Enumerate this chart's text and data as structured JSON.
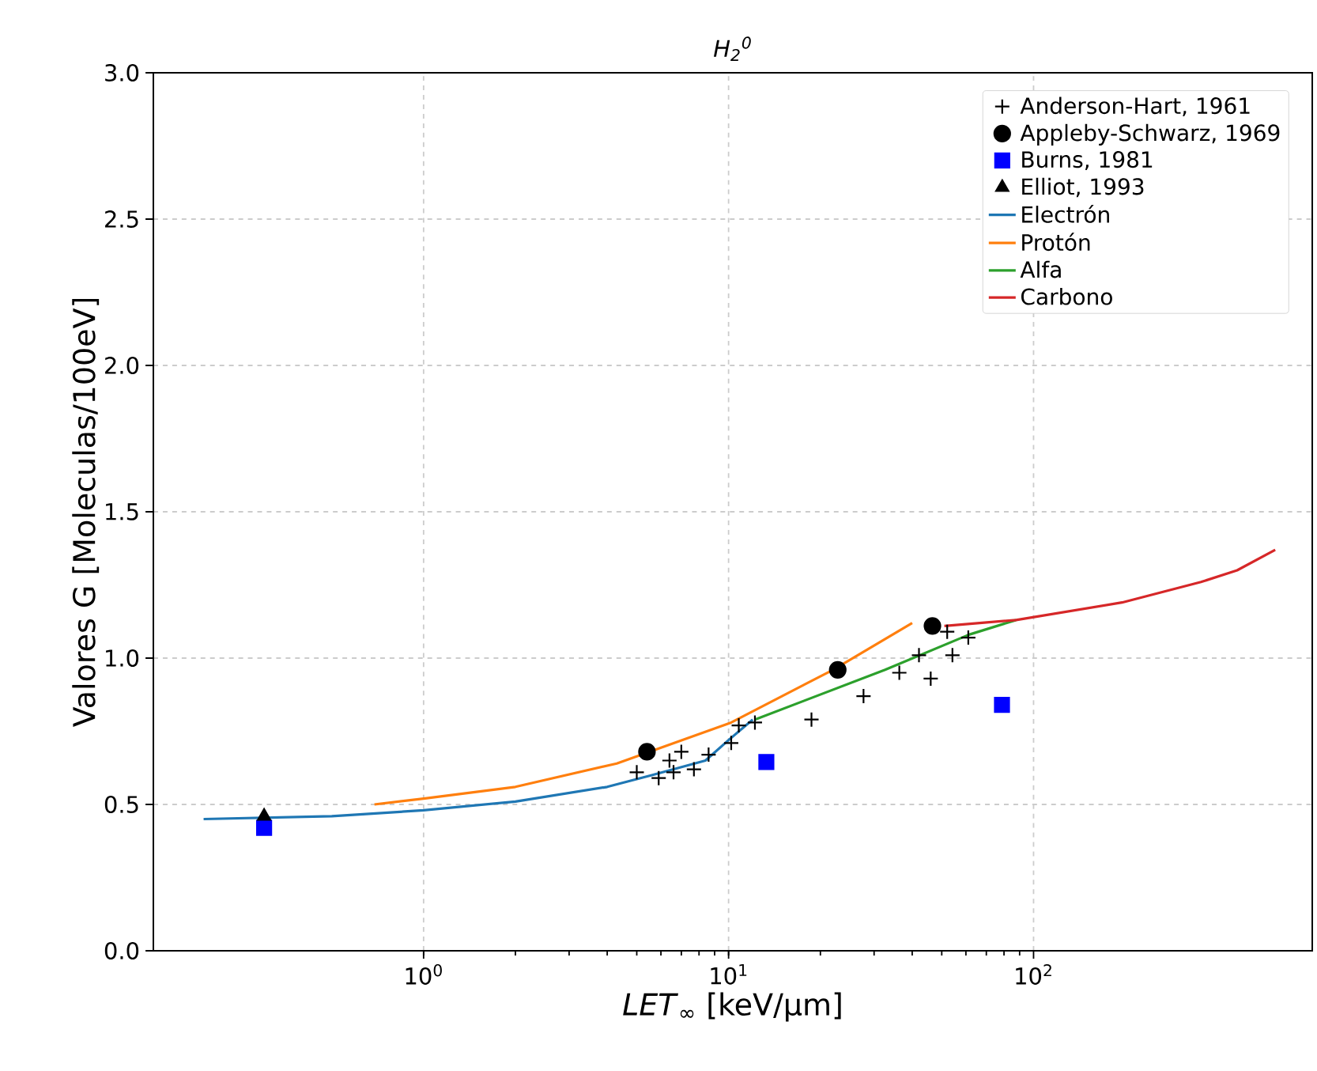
{
  "chart_data": {
    "type": "line",
    "title": "H$_{2}$$^{0}$",
    "xlabel": "*LET*$_{∞}$ [keV/µm]",
    "ylabel": "Valores G [Moleculas/100eV]",
    "log": "x",
    "grid": true,
    "legend": "top right",
    "xlim": [
      0.13,
      820
    ],
    "ylim": [
      0,
      3
    ],
    "xticks": [
      {
        "value": 1,
        "label": "10$^{0}$"
      },
      {
        "value": 10,
        "label": "10$^{1}$"
      },
      {
        "value": 100,
        "label": "10$^{2}$"
      }
    ],
    "yticks": [
      {
        "value": 0,
        "label": "0.0"
      },
      {
        "value": 0.5,
        "label": "0.5"
      },
      {
        "value": 1,
        "label": "1.0"
      },
      {
        "value": 1.5,
        "label": "1.5"
      },
      {
        "value": 2,
        "label": "2.0"
      },
      {
        "value": 2.5,
        "label": "2.5"
      },
      {
        "value": 3,
        "label": "3.0"
      }
    ],
    "series": [
      {
        "name": "Anderson-Hart, 1961",
        "type": "scatter",
        "marker": "cross",
        "color": "#000000",
        "x": [
          5.0,
          5.9,
          6.4,
          6.6,
          7.0,
          7.7,
          8.6,
          10.2,
          10.8,
          12.2,
          18.7,
          27.7,
          36.3,
          42.1,
          46.0,
          52.1,
          54.2,
          61.1
        ],
        "values": [
          0.61,
          0.59,
          0.65,
          0.61,
          0.68,
          0.62,
          0.67,
          0.71,
          0.77,
          0.78,
          0.79,
          0.87,
          0.95,
          1.01,
          0.93,
          1.09,
          1.01,
          1.07
        ]
      },
      {
        "name": "Appleby-Schwarz, 1969",
        "type": "scatter",
        "marker": "circle",
        "color": "#000000",
        "x": [
          5.4,
          22.8,
          46.6
        ],
        "values": [
          0.68,
          0.96,
          1.11
        ]
      },
      {
        "name": "Burns, 1981",
        "type": "scatter",
        "marker": "square",
        "color": "#0000ff",
        "x": [
          0.3,
          13.3,
          78.8
        ],
        "values": [
          0.42,
          0.645,
          0.84
        ]
      },
      {
        "name": "Elliot, 1993",
        "type": "scatter",
        "marker": "triangle",
        "color": "#000000",
        "x": [
          0.3
        ],
        "values": [
          0.46
        ]
      },
      {
        "name": "Electrón",
        "type": "line",
        "color": "#1f77b4",
        "x": [
          0.19,
          0.5,
          1.0,
          2.0,
          4.0,
          5.6,
          8.4,
          10.0,
          12.0
        ],
        "values": [
          0.45,
          0.46,
          0.48,
          0.51,
          0.56,
          0.6,
          0.65,
          0.72,
          0.79
        ]
      },
      {
        "name": "Protón",
        "type": "line",
        "color": "#ff7f0e",
        "x": [
          0.69,
          1.0,
          2.0,
          4.3,
          10.2,
          22.0,
          40.0
        ],
        "values": [
          0.5,
          0.52,
          0.56,
          0.64,
          0.78,
          0.96,
          1.12
        ]
      },
      {
        "name": "Alfa",
        "type": "line",
        "color": "#2ca02c",
        "x": [
          12.2,
          32.6,
          61.4,
          87.6
        ],
        "values": [
          0.79,
          0.96,
          1.08,
          1.13
        ]
      },
      {
        "name": "Carbono",
        "type": "line",
        "color": "#d62728",
        "x": [
          51,
          87.6,
          195,
          354,
          465,
          620
        ],
        "values": [
          1.11,
          1.13,
          1.19,
          1.26,
          1.3,
          1.37
        ]
      }
    ]
  }
}
